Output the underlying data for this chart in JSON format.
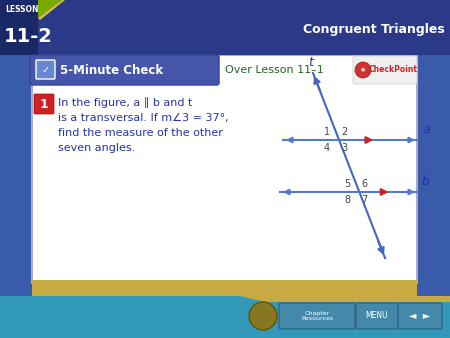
{
  "bg_outer": "#3a5aaa",
  "bg_outer2": "#2244aa",
  "bg_inner": "#ffffff",
  "bg_grid": "#dde8f8",
  "header_text": "5-Minute Check",
  "over_lesson": "Over Lesson 11–1",
  "lesson_label": "LESSON",
  "lesson_num": "11-2",
  "subject": "Congruent Triangles",
  "q_line1": "In the figure, a ∥ b and t",
  "q_line2": "is a transversal. If m∠3 = 37°,",
  "q_line3": "find the measure of the other",
  "q_line4": "seven angles.",
  "line_color": "#5577cc",
  "arrow_red": "#cc2222",
  "transversal_color": "#4466bb",
  "label_color": "#2233aa",
  "number_color": "#444444",
  "toolbar_color": "#3399bb",
  "toolbar_gold": "#c8aa44",
  "banner_color": "#4455aa",
  "checkpoint_red": "#cc2222",
  "green_accent": "#77aa00",
  "corner_dark": "#1a2866"
}
